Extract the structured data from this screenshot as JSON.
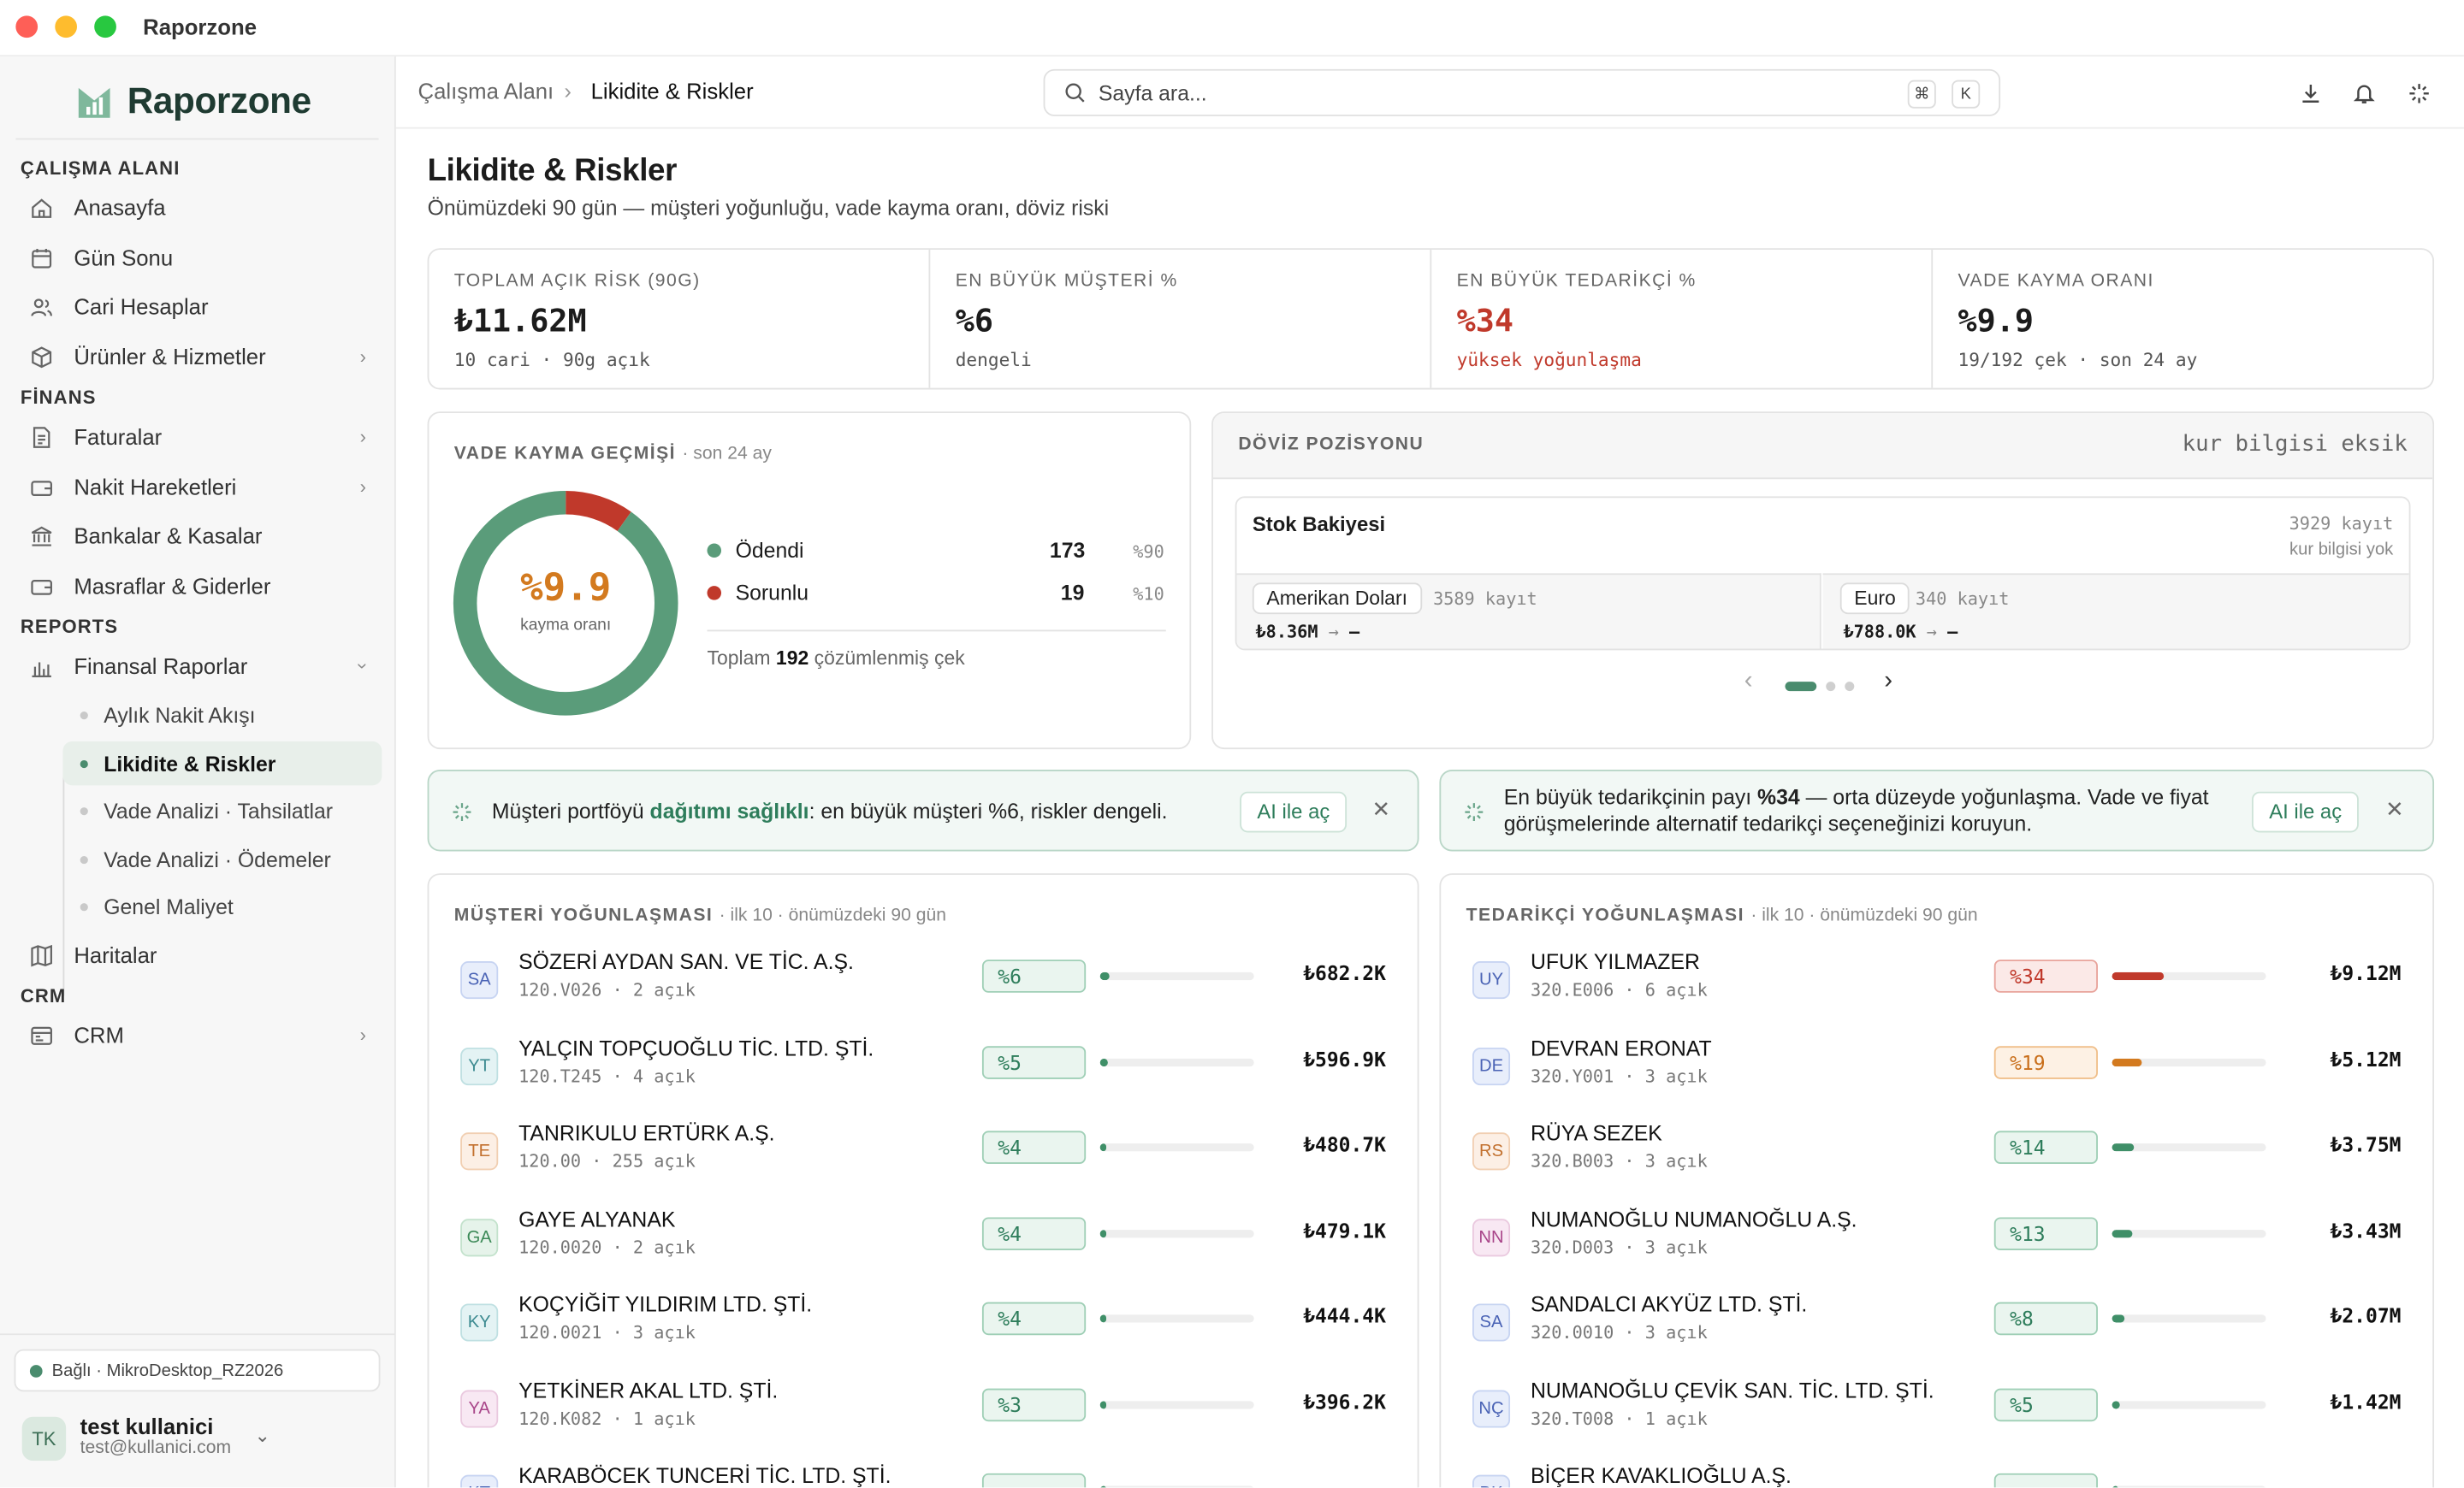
{
  "window": {
    "title": "Raporzone"
  },
  "sidebar": {
    "brand": "Raporzone",
    "sections": {
      "workspace": "ÇALIŞMA ALANI",
      "finance": "FİNANS",
      "reports": "REPORTS",
      "crm": "CRM"
    },
    "items": {
      "home": "Anasayfa",
      "end_of_day": "Gün Sonu",
      "accounts": "Cari Hesaplar",
      "products": "Ürünler & Hizmetler",
      "invoices": "Faturalar",
      "cash_moves": "Nakit Hareketleri",
      "banks": "Bankalar & Kasalar",
      "expenses": "Masraflar & Giderler",
      "fin_reports": "Finansal Raporlar",
      "maps": "Haritalar",
      "crm": "CRM"
    },
    "sub_items": [
      "Aylık Nakit Akışı",
      "Likidite & Riskler",
      "Vade Analizi · Tahsilatlar",
      "Vade Analizi · Ödemeler",
      "Genel Maliyet"
    ],
    "connection": "Bağlı · MikroDesktop_RZ2026",
    "user": {
      "initials": "TK",
      "name": "test kullanici",
      "email": "test@kullanici.com"
    }
  },
  "topbar": {
    "breadcrumb_parent": "Çalışma Alanı",
    "breadcrumb_sep": "›",
    "breadcrumb_current": "Likidite & Riskler",
    "search_placeholder": "Sayfa ara...",
    "kbd1": "⌘",
    "kbd2": "K"
  },
  "page": {
    "title": "Likidite & Riskler",
    "subtitle": "Önümüzdeki 90 gün — müşteri yoğunluğu, vade kayma oranı, döviz riski"
  },
  "kpis": [
    {
      "label": "TOPLAM AÇIK RİSK (90G)",
      "value": "₺11.62M",
      "sub": "10 cari · 90g açık",
      "color": "#111111"
    },
    {
      "label": "EN BÜYÜK MÜŞTERİ %",
      "value": "%6",
      "sub": "dengeli",
      "color": "#111111"
    },
    {
      "label": "EN BÜYÜK TEDARİKÇİ %",
      "value": "%34",
      "sub": "yüksek yoğunlaşma",
      "color": "#c0392b"
    },
    {
      "label": "VADE KAYMA ORANI",
      "value": "%9.9",
      "sub": "19/192 çek · son 24 ay",
      "color": "#111111"
    }
  ],
  "slippage": {
    "title": "VADE KAYMA GEÇMİŞİ",
    "note": "· son 24 ay",
    "center_value": "%9.9",
    "center_label": "kayma oranı",
    "center_color": "#d37a1f",
    "segments": [
      {
        "label": "Ödendi",
        "count": "173",
        "pct": "%90",
        "value": 173,
        "color": "#5a9c7a"
      },
      {
        "label": "Sorunlu",
        "count": "19",
        "pct": "%10",
        "value": 19,
        "color": "#c0392b"
      }
    ],
    "total_prefix": "Toplam",
    "total_value": "192",
    "total_suffix": "çözümlenmiş çek"
  },
  "fx": {
    "title": "DÖVİZ POZİSYONU",
    "status": "kur bilgisi eksik",
    "inner_title": "Stok Bakiyesi",
    "inner_count": "3929 kayıt",
    "inner_note": "kur bilgisi yok",
    "currencies": [
      {
        "name": "Amerikan Doları",
        "count": "3589 kayıt",
        "amount": "₺8.36M",
        "arrow": "→",
        "rate": "—"
      },
      {
        "name": "Euro",
        "count": "340 kayıt",
        "amount": "₺788.0K",
        "arrow": "→",
        "rate": "—"
      }
    ],
    "nav_prev": "‹",
    "nav_next": "›",
    "pager_active": 1,
    "pager_count": 3
  },
  "banners": [
    {
      "pre": "Müşteri portföyü ",
      "highlight": "dağıtımı sağlıklı",
      "post": ": en büyük müşteri %6, riskler dengeli.",
      "button": "AI ile aç"
    },
    {
      "pre": "En büyük tedarikçinin payı ",
      "highlight": "%34",
      "post": " — orta düzeyde yoğunlaşma. Vade ve fiyat görüşmelerinde alternatif tedarikçi seçeneğinizi koruyun.",
      "button": "AI ile aç"
    }
  ],
  "customers": {
    "title": "MÜŞTERİ YOĞUNLAŞMASI",
    "note": "· ilk 10 · önümüzdeki 90 gün",
    "rows": [
      {
        "initials": "SA",
        "name": "SÖZERİ AYDAN SAN. VE TİC. A.Ş.",
        "code": "120.V026",
        "open": "2 açık",
        "pct": "%6",
        "share": 0.06,
        "amount": "₺682.2K",
        "tone": "green",
        "avatar": "blue"
      },
      {
        "initials": "YT",
        "name": "YALÇIN TOPÇUOĞLU TİC. LTD. ŞTİ.",
        "code": "120.T245",
        "open": "4 açık",
        "pct": "%5",
        "share": 0.05,
        "amount": "₺596.9K",
        "tone": "green",
        "avatar": "teal"
      },
      {
        "initials": "TE",
        "name": "TANRIKULU ERTÜRK A.Ş.",
        "code": "120.00",
        "open": "255 açık",
        "pct": "%4",
        "share": 0.04,
        "amount": "₺480.7K",
        "tone": "green",
        "avatar": "orange"
      },
      {
        "initials": "GA",
        "name": "GAYE ALYANAK",
        "code": "120.0020",
        "open": "2 açık",
        "pct": "%4",
        "share": 0.04,
        "amount": "₺479.1K",
        "tone": "green",
        "avatar": "green"
      },
      {
        "initials": "KY",
        "name": "KOÇYİĞİT YILDIRIM LTD. ŞTİ.",
        "code": "120.0021",
        "open": "3 açık",
        "pct": "%4",
        "share": 0.04,
        "amount": "₺444.4K",
        "tone": "green",
        "avatar": "teal"
      },
      {
        "initials": "YA",
        "name": "YETKİNER AKAL LTD. ŞTİ.",
        "code": "120.K082",
        "open": "1 açık",
        "pct": "%3",
        "share": 0.03,
        "amount": "₺396.2K",
        "tone": "green",
        "avatar": "pink"
      },
      {
        "initials": "KT",
        "name": "KARABÖCEK TUNCERİ TİC. LTD. ŞTİ.",
        "code": "",
        "open": "",
        "pct": "",
        "share": 0.03,
        "amount": "",
        "tone": "green",
        "avatar": "blue"
      }
    ]
  },
  "suppliers": {
    "title": "TEDARİKÇİ YOĞUNLAŞMASI",
    "note": "· ilk 10 · önümüzdeki 90 gün",
    "rows": [
      {
        "initials": "UY",
        "name": "UFUK YILMAZER",
        "code": "320.E006",
        "open": "6 açık",
        "pct": "%34",
        "share": 0.34,
        "amount": "₺9.12M",
        "tone": "red",
        "avatar": "blue"
      },
      {
        "initials": "DE",
        "name": "DEVRAN ERONAT",
        "code": "320.Y001",
        "open": "3 açık",
        "pct": "%19",
        "share": 0.19,
        "amount": "₺5.12M",
        "tone": "orange",
        "avatar": "blue"
      },
      {
        "initials": "RS",
        "name": "RÜYA SEZEK",
        "code": "320.B003",
        "open": "3 açık",
        "pct": "%14",
        "share": 0.14,
        "amount": "₺3.75M",
        "tone": "green",
        "avatar": "orange"
      },
      {
        "initials": "NN",
        "name": "NUMANOĞLU NUMANOĞLU A.Ş.",
        "code": "320.D003",
        "open": "3 açık",
        "pct": "%13",
        "share": 0.13,
        "amount": "₺3.43M",
        "tone": "green",
        "avatar": "pink"
      },
      {
        "initials": "SA",
        "name": "SANDALCI AKYÜZ LTD. ŞTİ.",
        "code": "320.0010",
        "open": "3 açık",
        "pct": "%8",
        "share": 0.08,
        "amount": "₺2.07M",
        "tone": "green",
        "avatar": "blue"
      },
      {
        "initials": "NÇ",
        "name": "NUMANOĞLU ÇEVİK SAN. TİC. LTD. ŞTİ.",
        "code": "320.T008",
        "open": "1 açık",
        "pct": "%5",
        "share": 0.05,
        "amount": "₺1.42M",
        "tone": "green",
        "avatar": "blue"
      },
      {
        "initials": "BK",
        "name": "BİÇER KAVAKLIOĞLU A.Ş.",
        "code": "",
        "open": "",
        "pct": "",
        "share": 0.04,
        "amount": "",
        "tone": "green",
        "avatar": "blue"
      }
    ]
  },
  "colors": {
    "accent": "#2e7d5b",
    "danger": "#c0392b",
    "warning": "#d37a1f"
  }
}
